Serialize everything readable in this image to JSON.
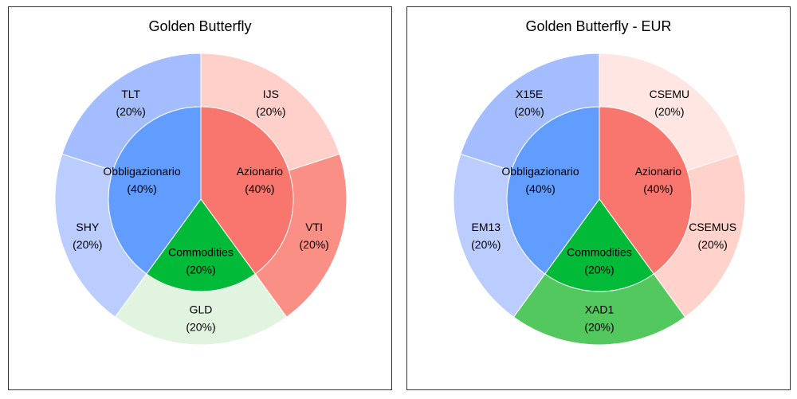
{
  "chart_data": [
    {
      "type": "pie",
      "title": "Golden Butterfly",
      "inner": [
        {
          "label": "Azionario",
          "pct_label": "(40%)",
          "value": 40,
          "color": "#F8766D"
        },
        {
          "label": "Commodities",
          "pct_label": "(20%)",
          "value": 20,
          "color": "#00BA38"
        },
        {
          "label": "Obbligazionario",
          "pct_label": "(40%)",
          "value": 40,
          "color": "#619CFF"
        }
      ],
      "outer": [
        {
          "label": "IJS",
          "pct_label": "(20%)",
          "value": 20,
          "color": "#FFD0CA"
        },
        {
          "label": "VTI",
          "pct_label": "(20%)",
          "value": 20,
          "color": "#FA8F86"
        },
        {
          "label": "GLD",
          "pct_label": "(20%)",
          "value": 20,
          "color": "#E1F4E0"
        },
        {
          "label": "SHY",
          "pct_label": "(20%)",
          "value": 20,
          "color": "#BBCCFF"
        },
        {
          "label": "TLT",
          "pct_label": "(20%)",
          "value": 20,
          "color": "#A3BDFF"
        }
      ]
    },
    {
      "type": "pie",
      "title": "Golden Butterfly - EUR",
      "inner": [
        {
          "label": "Azionario",
          "pct_label": "(40%)",
          "value": 40,
          "color": "#F8766D"
        },
        {
          "label": "Commodities",
          "pct_label": "(20%)",
          "value": 20,
          "color": "#00BA38"
        },
        {
          "label": "Obbligazionario",
          "pct_label": "(40%)",
          "value": 40,
          "color": "#619CFF"
        }
      ],
      "outer": [
        {
          "label": "CSEMU",
          "pct_label": "(20%)",
          "value": 20,
          "color": "#FFE6E3"
        },
        {
          "label": "CSEMUS",
          "pct_label": "(20%)",
          "value": 20,
          "color": "#FFD2CC"
        },
        {
          "label": "XAD1",
          "pct_label": "(20%)",
          "value": 20,
          "color": "#53C85E"
        },
        {
          "label": "EM13",
          "pct_label": "(20%)",
          "value": 20,
          "color": "#BBCCFF"
        },
        {
          "label": "X15E",
          "pct_label": "(20%)",
          "value": 20,
          "color": "#A3BDFF"
        }
      ]
    }
  ]
}
